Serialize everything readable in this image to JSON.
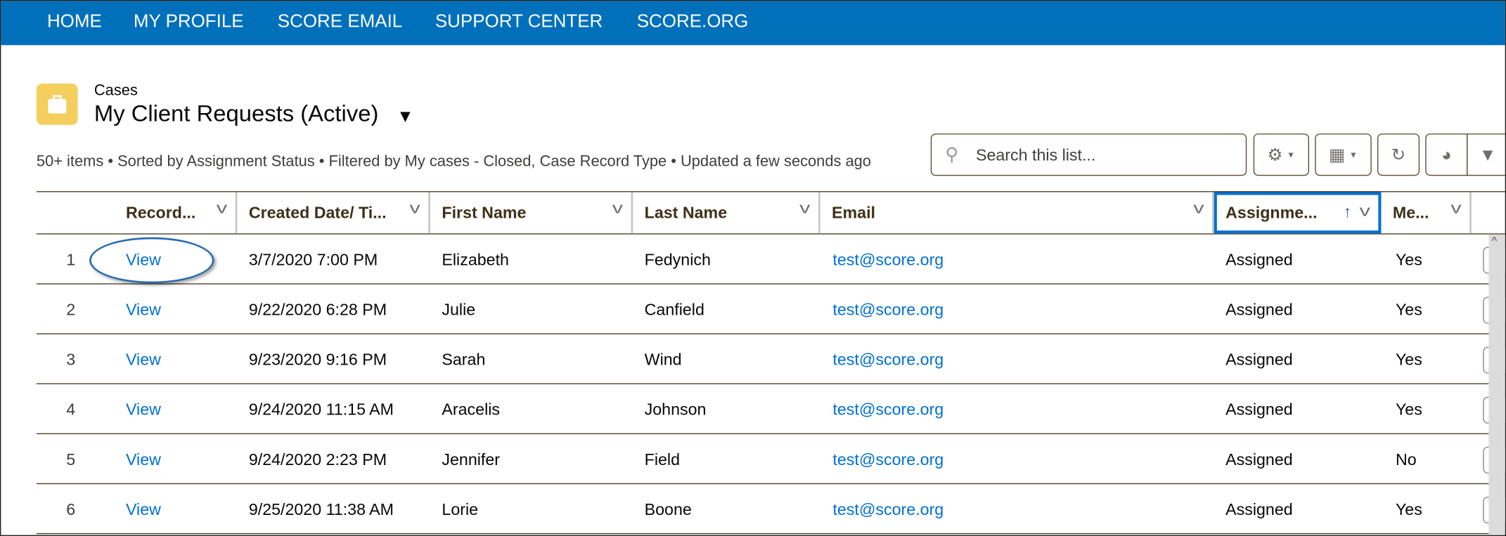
{
  "nav": {
    "items": [
      "HOME",
      "MY PROFILE",
      "SCORE EMAIL",
      "SUPPORT CENTER",
      "SCORE.ORG"
    ]
  },
  "header": {
    "object_label": "Cases",
    "list_title": "My Client Requests (Active)",
    "summary": "50+ items • Sorted by Assignment Status • Filtered by My cases - Closed, Case Record Type • Updated a few seconds ago"
  },
  "search": {
    "placeholder": "Search this list..."
  },
  "toolbar": {
    "icons": [
      "gear-icon",
      "table-icon",
      "refresh-icon",
      "chart-icon",
      "filter-icon"
    ]
  },
  "table": {
    "columns": [
      "Record...",
      "Created Date/ Ti...",
      "First Name",
      "Last Name",
      "Email",
      "Assignme...",
      "Me..."
    ],
    "sorted_column": "Assignme...",
    "sort_direction": "ascending",
    "rows": [
      {
        "n": "1",
        "record": "View",
        "created": "3/7/2020 7:00 PM",
        "first": "Elizabeth",
        "last": "Fedynich",
        "email": "test@score.org",
        "assignment": "Assigned",
        "me": "Yes"
      },
      {
        "n": "2",
        "record": "View",
        "created": "9/22/2020 6:28 PM",
        "first": "Julie",
        "last": "Canfield",
        "email": "test@score.org",
        "assignment": "Assigned",
        "me": "Yes"
      },
      {
        "n": "3",
        "record": "View",
        "created": "9/23/2020 9:16 PM",
        "first": "Sarah",
        "last": "Wind",
        "email": "test@score.org",
        "assignment": "Assigned",
        "me": "Yes"
      },
      {
        "n": "4",
        "record": "View",
        "created": "9/24/2020 11:15 AM",
        "first": "Aracelis",
        "last": "Johnson",
        "email": "test@score.org",
        "assignment": "Assigned",
        "me": "Yes"
      },
      {
        "n": "5",
        "record": "View",
        "created": "9/24/2020 2:23 PM",
        "first": "Jennifer",
        "last": "Field",
        "email": "test@score.org",
        "assignment": "Assigned",
        "me": "No"
      },
      {
        "n": "6",
        "record": "View",
        "created": "9/25/2020 11:38 AM",
        "first": "Lorie",
        "last": "Boone",
        "email": "test@score.org",
        "assignment": "Assigned",
        "me": "Yes"
      }
    ]
  },
  "colors": {
    "nav": "#0070bb",
    "link": "#0070d2",
    "icon": "#f4cf5e"
  }
}
